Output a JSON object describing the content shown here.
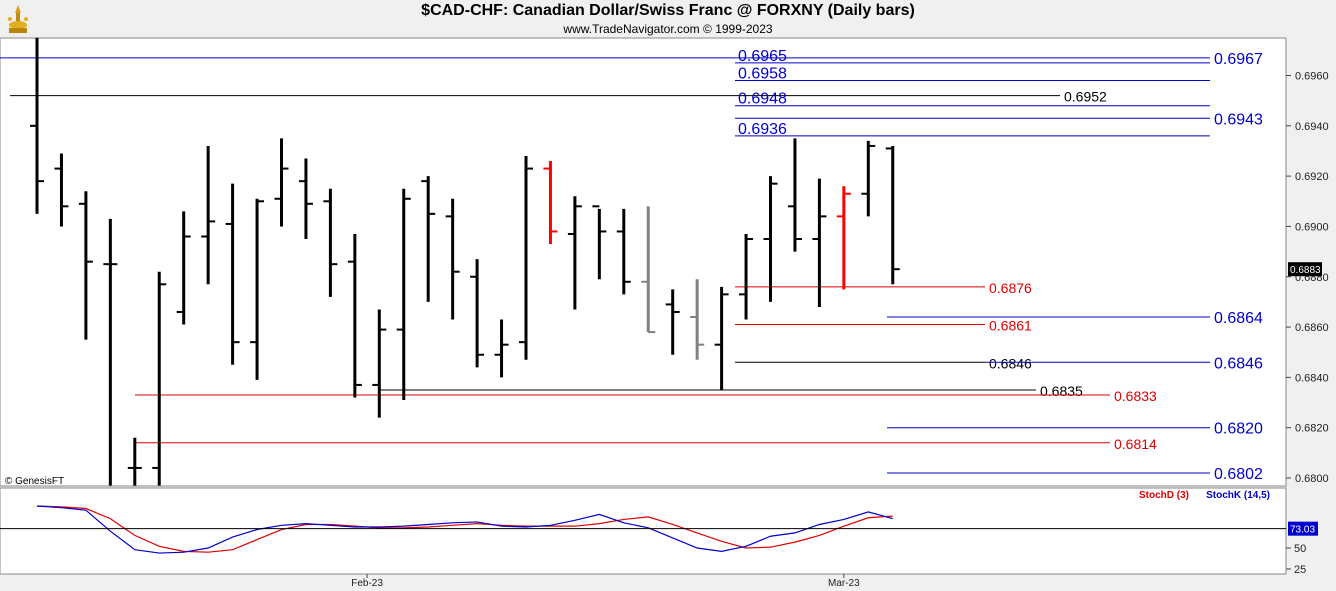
{
  "header": {
    "title": "$CAD-CHF:  Canadian Dollar/Swiss Franc @ FORXNY  (Daily bars)",
    "subtitle": "www.TradeNavigator.com © 1999-2023",
    "logo_icon": "gold-trophy-icon"
  },
  "watermark": "© GenesisFT",
  "colors": {
    "up_bar": "#000000",
    "signal_bar": "#ff0000",
    "neutral_bar": "#808080",
    "blue_line": "#0000cc",
    "red_line": "#dd0000",
    "black_line": "#000000",
    "stochD": "#dd0000",
    "stochK": "#0000cc"
  },
  "chart_data": [
    {
      "type": "ohlc",
      "title": "$CAD-CHF:  Canadian Dollar/Swiss Franc @ FORXNY  (Daily bars)",
      "ylim": [
        0.6795,
        0.6975
      ],
      "y_ticks": [
        "0.6800",
        "0.6820",
        "0.6840",
        "0.6860",
        "0.6880",
        "0.6900",
        "0.6920",
        "0.6940",
        "0.6960"
      ],
      "last_price": "0.6883",
      "x_labels": [
        {
          "label": "Feb-23",
          "index": 13.5
        },
        {
          "label": "Mar-23",
          "index": 33
        }
      ],
      "bars": [
        {
          "o": 0.694,
          "h": 0.6975,
          "l": 0.6905,
          "c": 0.6918,
          "color": "black"
        },
        {
          "o": 0.6923,
          "h": 0.6929,
          "l": 0.69,
          "c": 0.6908,
          "color": "black"
        },
        {
          "o": 0.6909,
          "h": 0.6914,
          "l": 0.6855,
          "c": 0.6886,
          "color": "black"
        },
        {
          "o": 0.6885,
          "h": 0.6903,
          "l": 0.6797,
          "c": 0.6885,
          "color": "black"
        },
        {
          "o": 0.6804,
          "h": 0.6816,
          "l": 0.6797,
          "c": 0.6804,
          "color": "black"
        },
        {
          "o": 0.6804,
          "h": 0.6882,
          "l": 0.6797,
          "c": 0.6877,
          "color": "black"
        },
        {
          "o": 0.6866,
          "h": 0.6906,
          "l": 0.6861,
          "c": 0.6896,
          "color": "black"
        },
        {
          "o": 0.6896,
          "h": 0.6932,
          "l": 0.6877,
          "c": 0.6902,
          "color": "black"
        },
        {
          "o": 0.6901,
          "h": 0.6917,
          "l": 0.6845,
          "c": 0.6854,
          "color": "black"
        },
        {
          "o": 0.6854,
          "h": 0.6911,
          "l": 0.6839,
          "c": 0.691,
          "color": "black"
        },
        {
          "o": 0.6911,
          "h": 0.6935,
          "l": 0.69,
          "c": 0.6923,
          "color": "black"
        },
        {
          "o": 0.6918,
          "h": 0.6927,
          "l": 0.6895,
          "c": 0.6909,
          "color": "black"
        },
        {
          "o": 0.691,
          "h": 0.6915,
          "l": 0.6872,
          "c": 0.6885,
          "color": "black"
        },
        {
          "o": 0.6886,
          "h": 0.6897,
          "l": 0.6832,
          "c": 0.6837,
          "color": "black"
        },
        {
          "o": 0.6837,
          "h": 0.6867,
          "l": 0.6824,
          "c": 0.6859,
          "color": "black"
        },
        {
          "o": 0.6859,
          "h": 0.6915,
          "l": 0.6831,
          "c": 0.6911,
          "color": "black"
        },
        {
          "o": 0.6918,
          "h": 0.692,
          "l": 0.687,
          "c": 0.6905,
          "color": "black"
        },
        {
          "o": 0.6904,
          "h": 0.6911,
          "l": 0.6863,
          "c": 0.6882,
          "color": "black"
        },
        {
          "o": 0.688,
          "h": 0.6887,
          "l": 0.6844,
          "c": 0.6849,
          "color": "black"
        },
        {
          "o": 0.6849,
          "h": 0.6863,
          "l": 0.684,
          "c": 0.6853,
          "color": "black"
        },
        {
          "o": 0.6854,
          "h": 0.6928,
          "l": 0.6847,
          "c": 0.6923,
          "color": "black"
        },
        {
          "o": 0.6923,
          "h": 0.6926,
          "l": 0.6893,
          "c": 0.6898,
          "color": "red"
        },
        {
          "o": 0.6897,
          "h": 0.6912,
          "l": 0.6867,
          "c": 0.6908,
          "color": "black"
        },
        {
          "o": 0.6908,
          "h": 0.6907,
          "l": 0.6879,
          "c": 0.6898,
          "color": "black"
        },
        {
          "o": 0.6898,
          "h": 0.6907,
          "l": 0.6873,
          "c": 0.6878,
          "color": "black"
        },
        {
          "o": 0.6878,
          "h": 0.6908,
          "l": 0.6858,
          "c": 0.6858,
          "color": "gray"
        },
        {
          "o": 0.6869,
          "h": 0.6875,
          "l": 0.6849,
          "c": 0.6866,
          "color": "black"
        },
        {
          "o": 0.6864,
          "h": 0.6879,
          "l": 0.6847,
          "c": 0.6853,
          "color": "gray"
        },
        {
          "o": 0.6853,
          "h": 0.6876,
          "l": 0.6835,
          "c": 0.6873,
          "color": "black"
        },
        {
          "o": 0.6873,
          "h": 0.6897,
          "l": 0.6863,
          "c": 0.6895,
          "color": "black"
        },
        {
          "o": 0.6895,
          "h": 0.692,
          "l": 0.687,
          "c": 0.6917,
          "color": "black"
        },
        {
          "o": 0.6908,
          "h": 0.6935,
          "l": 0.689,
          "c": 0.6895,
          "color": "black"
        },
        {
          "o": 0.6895,
          "h": 0.6919,
          "l": 0.6868,
          "c": 0.6904,
          "color": "black"
        },
        {
          "o": 0.6904,
          "h": 0.6916,
          "l": 0.6875,
          "c": 0.6913,
          "color": "red"
        },
        {
          "o": 0.6913,
          "h": 0.6934,
          "l": 0.6904,
          "c": 0.6932,
          "color": "black"
        },
        {
          "o": 0.6931,
          "h": 0.6932,
          "l": 0.6877,
          "c": 0.6883,
          "color": "black"
        }
      ],
      "levels": [
        {
          "value": 0.6967,
          "label": "0.6967",
          "color": "blue",
          "from": 0,
          "to": 1210,
          "label_at": "right"
        },
        {
          "value": 0.6965,
          "label": "0.6965",
          "color": "blue",
          "from": 735,
          "to": 1210,
          "label_at": "left"
        },
        {
          "value": 0.6958,
          "label": "0.6958",
          "color": "blue",
          "from": 735,
          "to": 1210,
          "label_at": "left"
        },
        {
          "value": 0.6952,
          "label": "0.6952",
          "color": "black",
          "from": 10,
          "to": 1060,
          "label_at": "end"
        },
        {
          "value": 0.6948,
          "label": "0.6948",
          "color": "blue",
          "from": 735,
          "to": 1210,
          "label_at": "left"
        },
        {
          "value": 0.6943,
          "label": "0.6943",
          "color": "blue",
          "from": 735,
          "to": 1210,
          "label_at": "right"
        },
        {
          "value": 0.6936,
          "label": "0.6936",
          "color": "blue",
          "from": 735,
          "to": 1210,
          "label_at": "left"
        },
        {
          "value": 0.6876,
          "label": "0.6876",
          "color": "red",
          "from": 735,
          "to": 985,
          "label_at": "end"
        },
        {
          "value": 0.6864,
          "label": "0.6864",
          "color": "blue",
          "from": 887,
          "to": 1210,
          "label_at": "right"
        },
        {
          "value": 0.6861,
          "label": "0.6861",
          "color": "red",
          "from": 735,
          "to": 985,
          "label_at": "end"
        },
        {
          "value": 0.6846,
          "label": "0.6846",
          "color": "black",
          "from": 735,
          "to": 985,
          "label_at": "end"
        },
        {
          "value": 0.6846,
          "label": "0.6846",
          "color": "blue",
          "from": 985,
          "to": 1210,
          "label_at": "right"
        },
        {
          "value": 0.6835,
          "label": "0.6835",
          "color": "black",
          "from": 380,
          "to": 1036,
          "label_at": "end"
        },
        {
          "value": 0.6833,
          "label": "0.6833",
          "color": "red",
          "from": 135,
          "to": 1110,
          "label_at": "end"
        },
        {
          "value": 0.682,
          "label": "0.6820",
          "color": "blue",
          "from": 887,
          "to": 1210,
          "label_at": "right"
        },
        {
          "value": 0.6814,
          "label": "0.6814",
          "color": "red",
          "from": 135,
          "to": 1110,
          "label_at": "end"
        },
        {
          "value": 0.6802,
          "label": "0.6802",
          "color": "blue",
          "from": 887,
          "to": 1210,
          "label_at": "right"
        }
      ]
    },
    {
      "type": "line",
      "legend": [
        "StochD (3)",
        "StochK (14,5)"
      ],
      "ylim": [
        20,
        100
      ],
      "y_ticks": [
        "50",
        "25"
      ],
      "last_value": "73.03",
      "series": [
        {
          "name": "StochD (3)",
          "color": "red",
          "values": [
            100,
            99,
            97,
            85,
            65,
            52,
            46,
            45,
            48,
            60,
            72,
            78,
            78,
            76,
            74,
            74,
            75,
            77,
            79,
            77,
            76,
            76,
            76,
            79,
            84,
            87,
            78,
            68,
            58,
            50,
            51,
            57,
            65,
            76,
            86,
            88
          ]
        },
        {
          "name": "StochK (14,5)",
          "color": "blue",
          "values": [
            100,
            98,
            95,
            70,
            48,
            44,
            45,
            50,
            63,
            72,
            77,
            79,
            77,
            75,
            75,
            76,
            78,
            80,
            81,
            76,
            75,
            77,
            83,
            90,
            80,
            74,
            62,
            50,
            46,
            52,
            64,
            68,
            78,
            84,
            93,
            85
          ]
        }
      ]
    }
  ]
}
